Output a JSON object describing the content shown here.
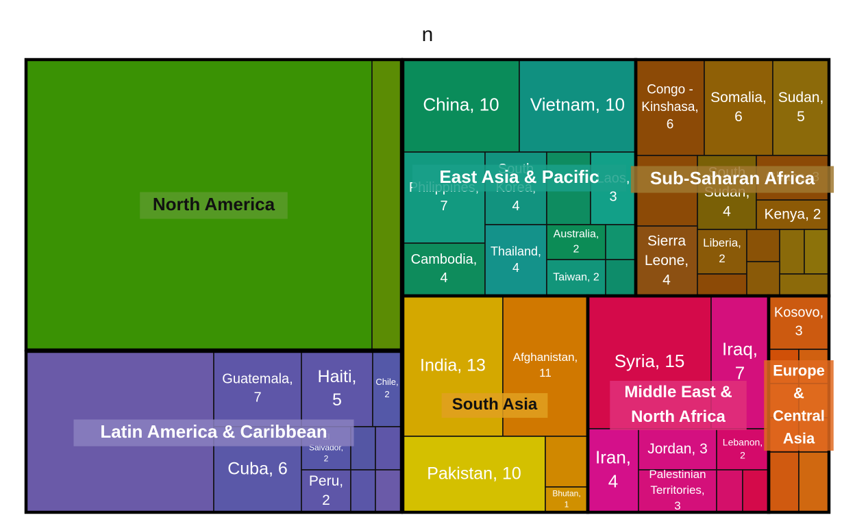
{
  "chart_data": {
    "type": "treemap",
    "title": "n",
    "value_label": "n",
    "groups": [
      {
        "name": "North America",
        "color": "#3a9204",
        "label_color": "#111111",
        "label_bg": "#5a9a2a",
        "items": [
          {
            "label": "",
            "value": 171
          },
          {
            "label": "",
            "value": 16
          }
        ]
      },
      {
        "name": "East Asia & Pacific",
        "color": "#0d8f6a",
        "label_color": "#ffffff",
        "label_bg": "#1aa08a",
        "items": [
          {
            "label": "China",
            "value": 10
          },
          {
            "label": "Vietnam",
            "value": 10
          },
          {
            "label": "Philippines",
            "value": 7
          },
          {
            "label": "South Korea",
            "value": 4
          },
          {
            "label": "",
            "value": 3
          },
          {
            "label": "Laos",
            "value": 3
          },
          {
            "label": "Cambodia",
            "value": 4
          },
          {
            "label": "Thailand",
            "value": 4
          },
          {
            "label": "Australia",
            "value": 2
          },
          {
            "label": "",
            "value": 1
          },
          {
            "label": "Taiwan",
            "value": 2
          },
          {
            "label": "",
            "value": 1
          }
        ]
      },
      {
        "name": "Sub-Saharan Africa",
        "color": "#8a5a0a",
        "label_color": "#ffffff",
        "label_bg": "#a07830",
        "items": [
          {
            "label": "Congo - Kinshasa",
            "value": 6
          },
          {
            "label": "Somalia",
            "value": 6
          },
          {
            "label": "Sudan",
            "value": 5
          },
          {
            "label": "",
            "value": 4
          },
          {
            "label": "South Sudan",
            "value": 4
          },
          {
            "label": "Ghana",
            "value": 3
          },
          {
            "label": "Kenya",
            "value": 2
          },
          {
            "label": "Sierra Leone",
            "value": 4
          },
          {
            "label": "Liberia",
            "value": 2
          },
          {
            "label": "",
            "value": 1
          },
          {
            "label": "",
            "value": 1
          },
          {
            "label": "",
            "value": 1
          },
          {
            "label": "",
            "value": 1
          },
          {
            "label": "",
            "value": 1
          },
          {
            "label": "",
            "value": 1
          }
        ]
      },
      {
        "name": "Latin America & Caribbean",
        "color": "#5e56a8",
        "label_color": "#ffffff",
        "label_bg": "#8a80c0",
        "items": [
          {
            "label": "",
            "value": 24
          },
          {
            "label": "Guatemala",
            "value": 7
          },
          {
            "label": "Haiti",
            "value": 5
          },
          {
            "label": "Chile",
            "value": 2
          },
          {
            "label": "Cuba",
            "value": 6
          },
          {
            "label": "El Salvador",
            "value": 2
          },
          {
            "label": "Peru",
            "value": 2
          },
          {
            "label": "",
            "value": 1
          },
          {
            "label": "",
            "value": 1
          },
          {
            "label": "",
            "value": 1
          },
          {
            "label": "",
            "value": 1
          }
        ]
      },
      {
        "name": "South Asia",
        "color": "#d0a500",
        "label_color": "#111111",
        "label_bg": "#e0a020",
        "items": [
          {
            "label": "India",
            "value": 13
          },
          {
            "label": "Afghanistan",
            "value": 11
          },
          {
            "label": "Pakistan",
            "value": 10
          },
          {
            "label": "",
            "value": 2
          },
          {
            "label": "Bhutan",
            "value": 1
          }
        ]
      },
      {
        "name": "Middle East & North Africa",
        "color": "#d80a50",
        "label_color": "#ffffff",
        "label_bg": "#e0307a",
        "items": [
          {
            "label": "Syria",
            "value": 15
          },
          {
            "label": "Iraq",
            "value": 7
          },
          {
            "label": "Iran",
            "value": 4
          },
          {
            "label": "Jordan",
            "value": 3
          },
          {
            "label": "Lebanon",
            "value": 2
          },
          {
            "label": "Palestinian Territories",
            "value": 3
          },
          {
            "label": "",
            "value": 1
          },
          {
            "label": "",
            "value": 1
          }
        ]
      },
      {
        "name": "Europe & Central Asia",
        "color": "#d05a10",
        "label_color": "#ffffff",
        "label_bg": "#e06a20",
        "items": [
          {
            "label": "Kosovo",
            "value": 3
          },
          {
            "label": "",
            "value": 1
          },
          {
            "label": "",
            "value": 1
          },
          {
            "label": "",
            "value": 1
          },
          {
            "label": "",
            "value": 1
          },
          {
            "label": "",
            "value": 1
          },
          {
            "label": "",
            "value": 1
          },
          {
            "label": "",
            "value": 1
          },
          {
            "label": "",
            "value": 1
          }
        ]
      }
    ]
  }
}
